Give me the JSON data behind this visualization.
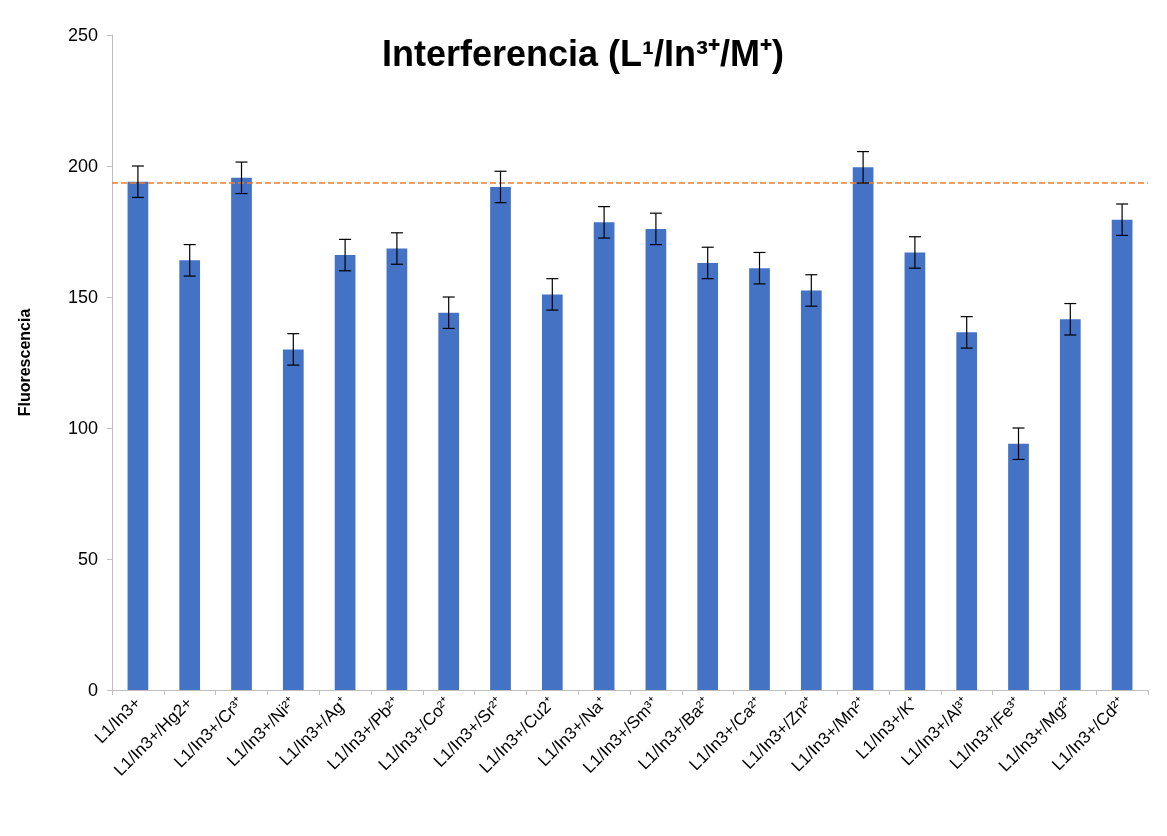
{
  "chart_data": {
    "type": "bar",
    "title": "Interferencia (L¹/In³⁺/M⁺)",
    "ylabel": "Fluorescencia",
    "categories": [
      "L1/In3+",
      "L1/In3+/Hg2+",
      "L1/In3+/Cr³⁺",
      "L1/In3+/Ni²⁺",
      "L1/In3+/Ag⁺",
      "L1/In3+/Pb²⁺",
      "L1/In3+/Co²⁺",
      "L1/In3+/Sr²⁺",
      "L1/In3+/Cu2⁺",
      "L1/In3+/Na⁺",
      "L1/In3+/Sm³⁺",
      "L1/In3+/Ba²⁺",
      "L1/In3+/Ca²⁺",
      "L1/In3+/Zn²⁺",
      "L1/In3+/Mn²⁺",
      "L1/In3+/K⁺",
      "L1/In3+/Al³⁺",
      "L1/In3+/Fe³⁺",
      "L1/In3+/Mg²⁺",
      "L1/In3+/Cd²⁺"
    ],
    "values": [
      194,
      164,
      195.5,
      130,
      166,
      168.5,
      144,
      192,
      151,
      178.5,
      176,
      163,
      161,
      152.5,
      199.5,
      167,
      136.5,
      94,
      141.5,
      179.5
    ],
    "errors": [
      6,
      6,
      6,
      6,
      6,
      6,
      6,
      6,
      6,
      6,
      6,
      6,
      6,
      6,
      6,
      6,
      6,
      6,
      6,
      6
    ],
    "color": "#4472c4",
    "ylim": [
      0,
      250
    ],
    "yticks": [
      0,
      50,
      100,
      150,
      200,
      250
    ],
    "ref_lines": [
      {
        "axis": "y",
        "value": 193.5,
        "color": "#ed7d31",
        "line_style": "dashed"
      }
    ],
    "grid": false
  }
}
